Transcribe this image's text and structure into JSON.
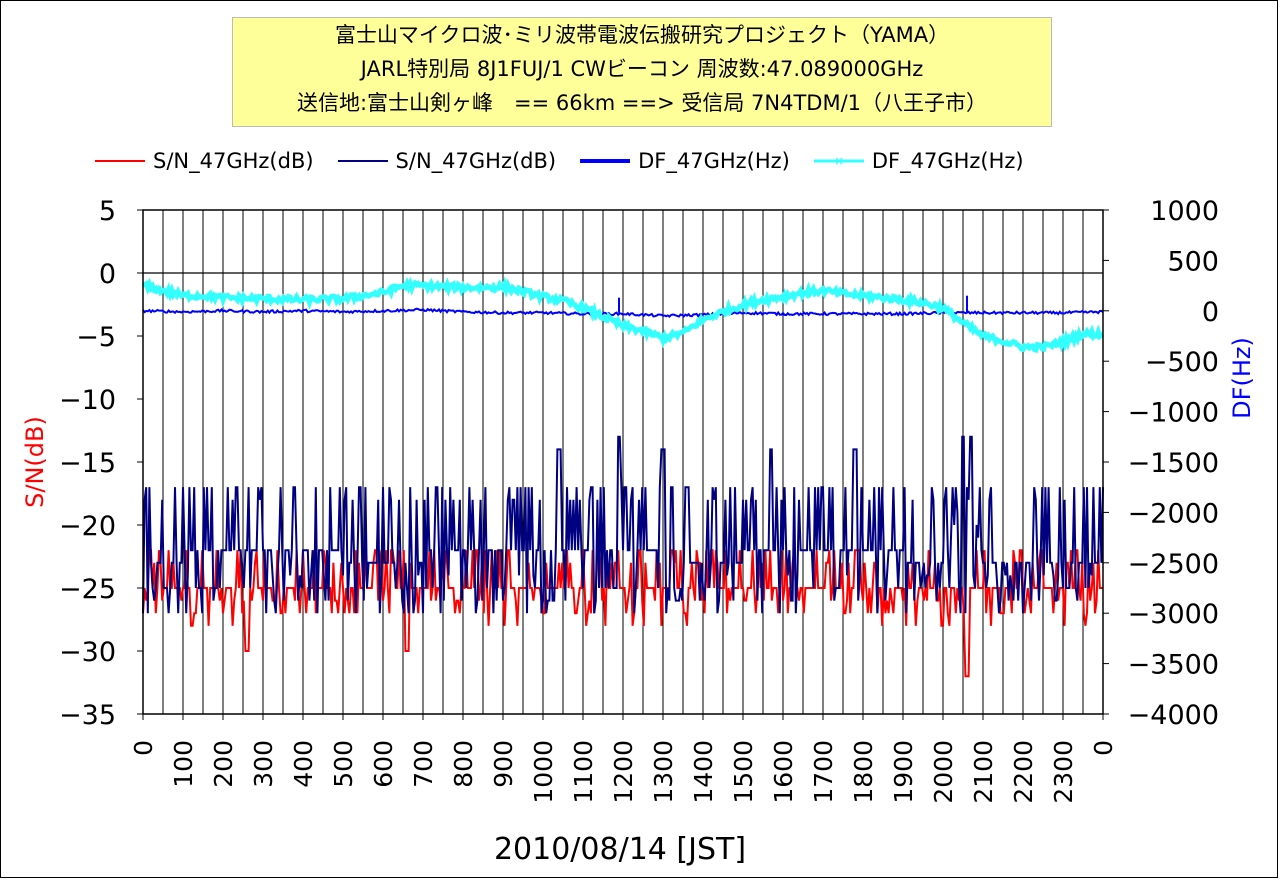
{
  "title": {
    "line1": "富士山マイクロ波･ミリ波帯電波伝搬研究プロジェクト（YAMA）",
    "line2": "JARL特別局 8J1FUJ/1 CWビーコン 周波数:47.089000GHz",
    "line3": "送信地:富士山剣ヶ峰　== 66km ==> 受信局 7N4TDM/1（八王子市）"
  },
  "colors": {
    "sn_red": "#ff0000",
    "sn_navy": "#000080",
    "df_blue": "#0000ff",
    "df_cyan": "#33ffff",
    "title_bg": "#ffff99"
  },
  "chart_data": {
    "type": "line",
    "xlabel": "2010/08/14 [JST]",
    "y_left_label": "S/N(dB)",
    "y_right_label": "DF(Hz)",
    "y_left_range": [
      -35,
      5
    ],
    "y_right_range": [
      -4000,
      1000
    ],
    "y_left_ticks": [
      "5",
      "0",
      "-5",
      "-10",
      "-15",
      "-20",
      "-25",
      "-30",
      "-35"
    ],
    "y_right_ticks": [
      "1000",
      "500",
      "0",
      "-500",
      "-1000",
      "-1500",
      "-2000",
      "-2500",
      "-3000",
      "-3500",
      "-4000"
    ],
    "x_ticks": [
      "0",
      "100",
      "200",
      "300",
      "400",
      "500",
      "600",
      "700",
      "800",
      "900",
      "1000",
      "1100",
      "1200",
      "1300",
      "1400",
      "1500",
      "1600",
      "1700",
      "1800",
      "1900",
      "2000",
      "2100",
      "2200",
      "2300",
      "0"
    ],
    "legend_position": "top",
    "grid": "vertical",
    "series": [
      {
        "name": "S/N_47GHz(dB)",
        "axis": "left",
        "color": "#ff0000",
        "baseline_x": [
          0,
          200,
          400,
          600,
          800,
          1000,
          1200,
          1400,
          1600,
          1800,
          2000,
          2060,
          2100,
          2200,
          2300,
          2400
        ],
        "baseline_y": [
          -25,
          -25,
          -25,
          -25,
          -25,
          -25,
          -25,
          -25,
          -25,
          -25,
          -25,
          -25,
          -25,
          -25,
          -25,
          -25
        ],
        "range_low": -28,
        "range_high": -22,
        "spikes": [
          [
            260,
            -30
          ],
          [
            660,
            -30
          ],
          [
            2060,
            -32
          ]
        ]
      },
      {
        "name": "S/N_47GHz(dB)",
        "axis": "left",
        "color": "#000080",
        "baseline_x": [
          0,
          200,
          400,
          600,
          800,
          1000,
          1200,
          1400,
          1600,
          1800,
          2000,
          2060,
          2100,
          2200,
          2300,
          2400
        ],
        "baseline_y": [
          -23,
          -22,
          -22,
          -23,
          -22,
          -22,
          -22,
          -23,
          -22,
          -22,
          -23,
          -16,
          -23,
          -23,
          -23,
          -23
        ],
        "range_low": -27,
        "range_high": -17,
        "spikes": [
          [
            1040,
            -14
          ],
          [
            1190,
            -13
          ],
          [
            1300,
            -14
          ],
          [
            1570,
            -14
          ],
          [
            1780,
            -14
          ],
          [
            2050,
            -13
          ],
          [
            2070,
            -13
          ]
        ]
      },
      {
        "name": "DF_47GHz(Hz)",
        "axis": "right",
        "color": "#0000ff",
        "x": [
          0,
          100,
          200,
          300,
          400,
          500,
          600,
          700,
          800,
          900,
          1000,
          1100,
          1200,
          1300,
          1400,
          1500,
          1600,
          1700,
          1800,
          1900,
          2000,
          2100,
          2200,
          2300,
          2400
        ],
        "y": [
          0,
          -10,
          0,
          -10,
          0,
          -10,
          0,
          10,
          -10,
          -20,
          -20,
          -30,
          -30,
          -50,
          -40,
          -20,
          -30,
          -30,
          -30,
          -30,
          -20,
          -20,
          -20,
          -20,
          -10
        ]
      },
      {
        "name": "DF_47GHz(Hz)",
        "axis": "right",
        "color": "#33ffff",
        "x": [
          0,
          50,
          100,
          150,
          200,
          300,
          400,
          500,
          550,
          600,
          650,
          700,
          800,
          850,
          900,
          1000,
          1050,
          1100,
          1150,
          1200,
          1250,
          1300,
          1350,
          1400,
          1450,
          1500,
          1550,
          1600,
          1650,
          1700,
          1750,
          1800,
          1900,
          1950,
          2000,
          2050,
          2100,
          2150,
          2200,
          2250,
          2300,
          2350,
          2400
        ],
        "y": [
          250,
          200,
          150,
          150,
          130,
          120,
          110,
          120,
          150,
          180,
          250,
          250,
          230,
          230,
          240,
          140,
          100,
          30,
          -60,
          -150,
          -200,
          -270,
          -220,
          -90,
          -10,
          60,
          110,
          140,
          180,
          200,
          170,
          150,
          110,
          80,
          30,
          -120,
          -250,
          -300,
          -360,
          -360,
          -310,
          -230,
          -230
        ]
      }
    ]
  }
}
